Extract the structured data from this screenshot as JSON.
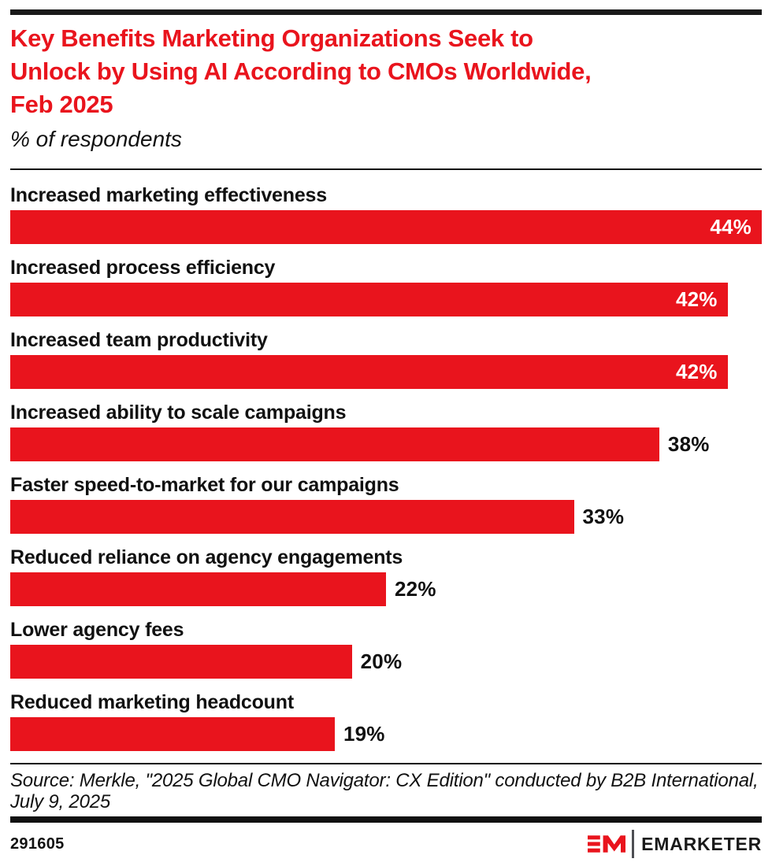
{
  "colors": {
    "accent_red": "#E9141D",
    "text_black": "#111111",
    "rule_black": "#1a1a1a",
    "divider_gray": "#4d4e53",
    "inside_value_white": "#ffffff"
  },
  "header": {
    "title_lines": {
      "0": "Key Benefits Marketing Organizations Seek to",
      "1": "Unlock by Using AI According to CMOs Worldwide,",
      "2": "Feb 2025"
    },
    "subtitle": "% of respondents"
  },
  "chart_data": {
    "type": "bar",
    "orientation": "horizontal",
    "title": "Key Benefits Marketing Organizations Seek to Unlock by Using AI According to CMOs Worldwide, Feb 2025",
    "xlabel": "% of respondents",
    "ylabel": "",
    "xlim": [
      0,
      44
    ],
    "grid": false,
    "legend": "none",
    "bar_color": "#E9141D",
    "categories": [
      "Increased marketing effectiveness",
      "Increased process efficiency",
      "Increased team productivity",
      "Increased ability to scale campaigns",
      "Faster speed-to-market for our campaigns",
      "Reduced reliance on agency engagements",
      "Lower agency fees",
      "Reduced marketing headcount"
    ],
    "values": [
      44,
      42,
      42,
      38,
      33,
      22,
      20,
      19
    ],
    "value_labels": [
      "44%",
      "42%",
      "42%",
      "38%",
      "33%",
      "22%",
      "20%",
      "19%"
    ],
    "value_label_positions": [
      "inside",
      "inside",
      "inside",
      "outside",
      "outside",
      "outside",
      "outside",
      "outside"
    ]
  },
  "source": {
    "text": "Source: Merkle, \"2025 Global CMO Navigator: CX Edition\" conducted by B2B International, July 9, 2025"
  },
  "footer": {
    "chart_id": "291605",
    "brand_wordmark": "EMARKETER"
  }
}
